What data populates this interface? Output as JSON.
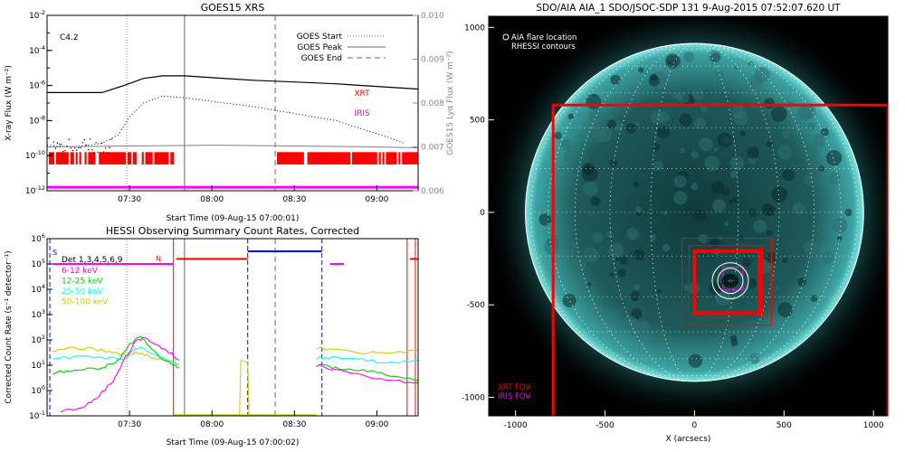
{
  "chart_data": [
    {
      "id": "goes",
      "type": "line",
      "title": "GOES15 XRS",
      "xlabel": "Start Time (09-Aug-15 07:00:01)",
      "ylabel": "X-ray Flux (W m⁻²)",
      "y2label": "GOES15 Lyα Flux (W m⁻²)",
      "xlim_min": [
        0,
        135
      ],
      "ylim_log": [
        -12,
        -2
      ],
      "y2lim": [
        0.006,
        0.01
      ],
      "xticks": [
        {
          "t": 30,
          "label": "07:30"
        },
        {
          "t": 60,
          "label": "08:00"
        },
        {
          "t": 90,
          "label": "08:30"
        },
        {
          "t": 120,
          "label": "09:00"
        }
      ],
      "yticks": [
        {
          "e": -12,
          "label": "10"
        },
        {
          "e": -10,
          "label": "10"
        },
        {
          "e": -8,
          "label": "10"
        },
        {
          "e": -6,
          "label": "10"
        },
        {
          "e": -4,
          "label": "10"
        },
        {
          "e": -2,
          "label": "10"
        }
      ],
      "yticks_exp": [
        "-12",
        "-10",
        "-8",
        "-6",
        "-4",
        "-2"
      ],
      "y2ticks": [
        "0.006",
        "0.007",
        "0.008",
        "0.009",
        "0.010"
      ],
      "y2tick_values": [
        0.006,
        0.007,
        0.008,
        0.009,
        0.01
      ],
      "class_label": "C4.2",
      "legend": [
        {
          "label": "GOES Start",
          "style": "dotted"
        },
        {
          "label": "GOES Peak",
          "style": "solid"
        },
        {
          "label": "GOES End",
          "style": "dashed"
        }
      ],
      "markers_min": {
        "start": 29,
        "peak": 50,
        "end": 83
      },
      "instrument_labels": [
        {
          "label": "XRT",
          "color": "#ff0000"
        },
        {
          "label": "IRIS",
          "color": "#ff00ff"
        }
      ],
      "series": [
        {
          "name": "long",
          "color": "#000000",
          "x": [
            0,
            20,
            28,
            35,
            42,
            50,
            60,
            75,
            90,
            105,
            120,
            135
          ],
          "log": [
            -6.4,
            -6.4,
            -6.0,
            -5.6,
            -5.45,
            -5.45,
            -5.55,
            -5.7,
            -5.8,
            -5.9,
            -6.05,
            -6.2
          ]
        },
        {
          "name": "short",
          "color": "#000000",
          "style": "dotted",
          "x": [
            0,
            10,
            20,
            26,
            30,
            35,
            42,
            50,
            60,
            75,
            90,
            105,
            115,
            125,
            130
          ],
          "log": [
            -9.4,
            -9.5,
            -9.3,
            -8.8,
            -7.8,
            -7.0,
            -6.6,
            -6.7,
            -6.9,
            -7.2,
            -7.6,
            -8.0,
            -8.5,
            -9.0,
            -9.3
          ]
        },
        {
          "name": "lya",
          "color": "#808080",
          "x": [
            0,
            30,
            60,
            90,
            120,
            135
          ],
          "log": [
            -9.5,
            -9.45,
            -9.4,
            -9.45,
            -9.5,
            -9.55
          ]
        }
      ],
      "xrt_intervals_min": [
        [
          0,
          46
        ],
        [
          83,
          135
        ]
      ],
      "iris_interval_min": [
        0,
        135
      ]
    },
    {
      "id": "hessi",
      "type": "line",
      "title": "HESSI Observing Summary Count Rates, Corrected",
      "xlabel": "Start Time (09-Aug-15 07:00:02)",
      "ylabel": "Corrected Count Rate (s⁻¹ detector⁻¹)",
      "xlim_min": [
        0,
        135
      ],
      "ylim_log": [
        -1,
        6
      ],
      "xticks": [
        {
          "t": 30,
          "label": "07:30"
        },
        {
          "t": 60,
          "label": "08:00"
        },
        {
          "t": 90,
          "label": "08:30"
        },
        {
          "t": 120,
          "label": "09:00"
        }
      ],
      "yticks_exp": [
        "-1",
        "0",
        "1",
        "2",
        "3",
        "4",
        "5",
        "6"
      ],
      "yticks_base": "10",
      "legend_title": "Det 1,3,4,5,6,9",
      "legend": [
        {
          "label": "6-12 keV",
          "color": "#ff00ff"
        },
        {
          "label": "12-25 keV",
          "color": "#00cc00"
        },
        {
          "label": "25-50 keV",
          "color": "#00ffff"
        },
        {
          "label": "50-100 keV",
          "color": "#cccc00"
        }
      ],
      "flag_labels": [
        {
          "label": "S",
          "color": "#0000ff"
        },
        {
          "label": "N",
          "color": "#ff0000"
        }
      ],
      "series": [
        {
          "name": "50-100 keV",
          "color": "#cccc00",
          "x": [
            2,
            10,
            20,
            28,
            33,
            38,
            44,
            48
          ],
          "log": [
            1.6,
            1.7,
            1.6,
            1.4,
            1.5,
            1.3,
            1.2,
            1.0
          ]
        },
        {
          "name": "25-50 keV",
          "color": "#00ffff",
          "x": [
            2,
            10,
            20,
            28,
            33,
            38,
            44,
            48
          ],
          "log": [
            1.3,
            1.35,
            1.3,
            1.25,
            1.7,
            1.5,
            1.2,
            1.0
          ]
        },
        {
          "name": "12-25 keV",
          "color": "#00cc00",
          "x": [
            2,
            10,
            20,
            26,
            30,
            34,
            38,
            44,
            48
          ],
          "log": [
            0.7,
            0.8,
            0.9,
            1.2,
            1.8,
            2.2,
            1.6,
            1.1,
            0.9
          ]
        },
        {
          "name": "6-12 keV",
          "color": "#ff00ff",
          "x": [
            5,
            12,
            18,
            24,
            28,
            32,
            35,
            40,
            45,
            48
          ],
          "log": [
            -0.8,
            -0.7,
            -0.3,
            0.4,
            1.2,
            1.9,
            2.1,
            1.8,
            1.5,
            1.2
          ]
        },
        {
          "name": "50-100 keV b",
          "color": "#cccc00",
          "x": [
            98,
            105,
            115,
            125,
            135
          ],
          "log": [
            1.7,
            1.6,
            1.5,
            1.5,
            1.6
          ]
        },
        {
          "name": "25-50 keV b",
          "color": "#00ffff",
          "x": [
            98,
            105,
            115,
            125,
            135
          ],
          "log": [
            1.3,
            1.3,
            1.2,
            1.1,
            1.2
          ]
        },
        {
          "name": "12-25 keV b",
          "color": "#00cc00",
          "x": [
            98,
            105,
            115,
            125,
            135
          ],
          "log": [
            1.0,
            0.9,
            0.8,
            0.6,
            0.4
          ]
        },
        {
          "name": "6-12 keV b",
          "color": "#ff00ff",
          "x": [
            98,
            105,
            115,
            125,
            135
          ],
          "log": [
            1.0,
            0.8,
            0.6,
            0.4,
            0.3
          ]
        }
      ],
      "flag_segments": [
        {
          "color": "#ff00ff",
          "x0": 2,
          "x1": 46,
          "log": 5.0
        },
        {
          "color": "#ff0000",
          "x0": 47,
          "x1": 73,
          "log": 5.2
        },
        {
          "color": "#0000ff",
          "x0": 73,
          "x1": 100,
          "log": 5.5
        },
        {
          "color": "#ff00ff",
          "x0": 103,
          "x1": 108,
          "log": 5.0
        },
        {
          "color": "#ff0000",
          "x0": 132,
          "x1": 135,
          "log": 5.2
        }
      ]
    },
    {
      "id": "aia",
      "type": "heatmap",
      "title": "SDO/AIA AIA_1 SDO/JSOC-SDP 131  9-Aug-2015 07:52:07.620 UT",
      "xlabel": "X (arcsecs)",
      "ylabel": "",
      "xlim": [
        -1150,
        1080
      ],
      "ylim": [
        -1100,
        1060
      ],
      "xticks": [
        "-1000",
        "-500",
        "0",
        "500",
        "1000"
      ],
      "xtick_values": [
        -1000,
        -500,
        0,
        500,
        1000
      ],
      "yticks": [
        "1000",
        "500",
        "0",
        "-500",
        "-1000"
      ],
      "ytick_values": [
        1000,
        500,
        0,
        -500,
        -1000
      ],
      "legend_top": [
        "AIA flare location",
        "RHESSI contours"
      ],
      "legend_bottom": [
        {
          "label": "XRT FOV",
          "color": "#ff0000"
        },
        {
          "label": "IRIS FOV",
          "color": "#ff00ff"
        }
      ],
      "solar_radius": 945,
      "flare_center": [
        200,
        -370
      ],
      "fovs": [
        {
          "color": "#ff0000",
          "x0": -790,
          "y0": -1140,
          "x1": 1080,
          "y1": 580,
          "w": 3
        },
        {
          "color": "#ff0000",
          "x0": -70,
          "y0": -610,
          "x1": 430,
          "y1": -140,
          "w": 1
        },
        {
          "color": "#ff0000",
          "x0": -30,
          "y0": -570,
          "x1": 380,
          "y1": -180,
          "w": 1
        },
        {
          "color": "#ff0000",
          "x0": 0,
          "y0": -545,
          "x1": 365,
          "y1": -210,
          "w": 4
        },
        {
          "color": "#ff00ff",
          "x0": 160,
          "y0": -420,
          "x1": 270,
          "y1": -295,
          "w": 1
        }
      ]
    }
  ]
}
